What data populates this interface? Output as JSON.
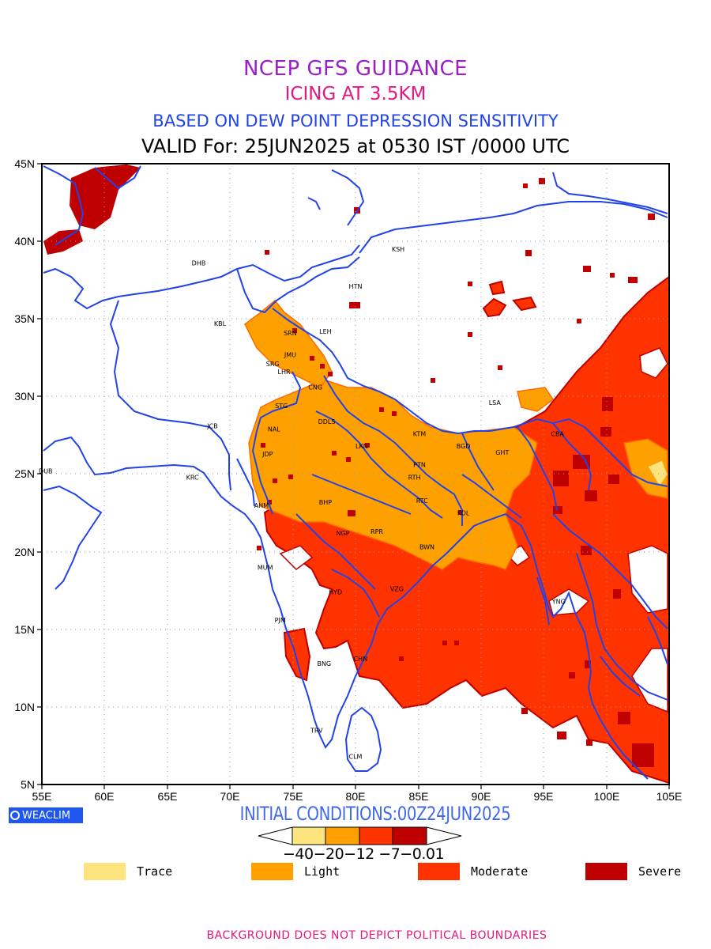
{
  "header": {
    "line1": "NCEP GFS GUIDANCE",
    "line2": "ICING AT 3.5KM",
    "line3": "BASED ON DEW POINT DEPRESSION SENSITIVITY",
    "line4": "VALID For: 25JUN2025 at 0530 IST /0000 UTC"
  },
  "axes": {
    "lon_labels": [
      "55E",
      "60E",
      "65E",
      "70E",
      "75E",
      "80E",
      "85E",
      "90E",
      "95E",
      "100E",
      "105E"
    ],
    "lat_labels": [
      "45N",
      "40N",
      "35N",
      "30N",
      "25N",
      "20N",
      "15N",
      "10N",
      "5N"
    ],
    "lon_range": [
      55,
      105
    ],
    "lat_range": [
      5,
      45
    ]
  },
  "cities": [
    {
      "name": "KSH",
      "lon": 83.4,
      "lat": 39.5
    },
    {
      "name": "DHB",
      "lon": 67.5,
      "lat": 38.6
    },
    {
      "name": "HTN",
      "lon": 80.0,
      "lat": 37.1
    },
    {
      "name": "KBL",
      "lon": 69.2,
      "lat": 34.7
    },
    {
      "name": "SRN",
      "lon": 74.8,
      "lat": 34.1
    },
    {
      "name": "LEH",
      "lon": 77.6,
      "lat": 34.2
    },
    {
      "name": "JMU",
      "lon": 74.8,
      "lat": 32.7
    },
    {
      "name": "SRG",
      "lon": 73.4,
      "lat": 32.1
    },
    {
      "name": "LHR",
      "lon": 74.3,
      "lat": 31.6
    },
    {
      "name": "CNG",
      "lon": 76.8,
      "lat": 30.6
    },
    {
      "name": "STG",
      "lon": 74.1,
      "lat": 29.4
    },
    {
      "name": "NAL",
      "lon": 73.5,
      "lat": 27.9
    },
    {
      "name": "JCB",
      "lon": 68.6,
      "lat": 28.1
    },
    {
      "name": "DDLS",
      "lon": 77.7,
      "lat": 28.4
    },
    {
      "name": "LSA",
      "lon": 91.1,
      "lat": 29.6
    },
    {
      "name": "KTM",
      "lon": 85.1,
      "lat": 27.6
    },
    {
      "name": "CBA",
      "lon": 96.1,
      "lat": 27.6
    },
    {
      "name": "JDP",
      "lon": 73.0,
      "lat": 26.3
    },
    {
      "name": "LKN",
      "lon": 80.5,
      "lat": 26.8
    },
    {
      "name": "BGD",
      "lon": 88.6,
      "lat": 26.8
    },
    {
      "name": "GHT",
      "lon": 91.7,
      "lat": 26.4
    },
    {
      "name": "PTN",
      "lon": 85.1,
      "lat": 25.6
    },
    {
      "name": "DUB",
      "lon": 55.3,
      "lat": 25.2
    },
    {
      "name": "KRC",
      "lon": 67.0,
      "lat": 24.8
    },
    {
      "name": "RTH",
      "lon": 84.7,
      "lat": 24.8
    },
    {
      "name": "AHM",
      "lon": 72.5,
      "lat": 23.0
    },
    {
      "name": "BHP",
      "lon": 77.6,
      "lat": 23.2
    },
    {
      "name": "RTC",
      "lon": 85.3,
      "lat": 23.3
    },
    {
      "name": "KOL",
      "lon": 88.6,
      "lat": 22.5
    },
    {
      "name": "NGP",
      "lon": 79.0,
      "lat": 21.2
    },
    {
      "name": "RPR",
      "lon": 81.7,
      "lat": 21.3
    },
    {
      "name": "BWN",
      "lon": 85.7,
      "lat": 20.3
    },
    {
      "name": "MUM",
      "lon": 72.8,
      "lat": 19.0
    },
    {
      "name": "HYD",
      "lon": 78.4,
      "lat": 17.4
    },
    {
      "name": "VZG",
      "lon": 83.3,
      "lat": 17.6
    },
    {
      "name": "YNG",
      "lon": 96.2,
      "lat": 16.8
    },
    {
      "name": "PJM",
      "lon": 74.0,
      "lat": 15.6
    },
    {
      "name": "CHN",
      "lon": 80.4,
      "lat": 13.1
    },
    {
      "name": "BNG",
      "lon": 77.5,
      "lat": 12.8
    },
    {
      "name": "TRV",
      "lon": 76.9,
      "lat": 8.5
    },
    {
      "name": "CLM",
      "lon": 80.0,
      "lat": 6.8
    }
  ],
  "colorbar": {
    "ticks": "−40−20−12 −7−0.01",
    "colors": [
      "#fde47f",
      "#fea100",
      "#fe3300",
      "#be0000"
    ]
  },
  "legend": [
    {
      "label": "Trace",
      "color": "#fde47f"
    },
    {
      "label": "Light",
      "color": "#fea100"
    },
    {
      "label": "Moderate",
      "color": "#fe3300"
    },
    {
      "label": "Severe",
      "color": "#be0000"
    }
  ],
  "branding": {
    "logo_text": "WEACLIM"
  },
  "footer": {
    "init": "INITIAL CONDITIONS:00Z24JUN2025",
    "disclaimer": "BACKGROUND DOES NOT DEPICT POLITICAL BOUNDARIES"
  }
}
